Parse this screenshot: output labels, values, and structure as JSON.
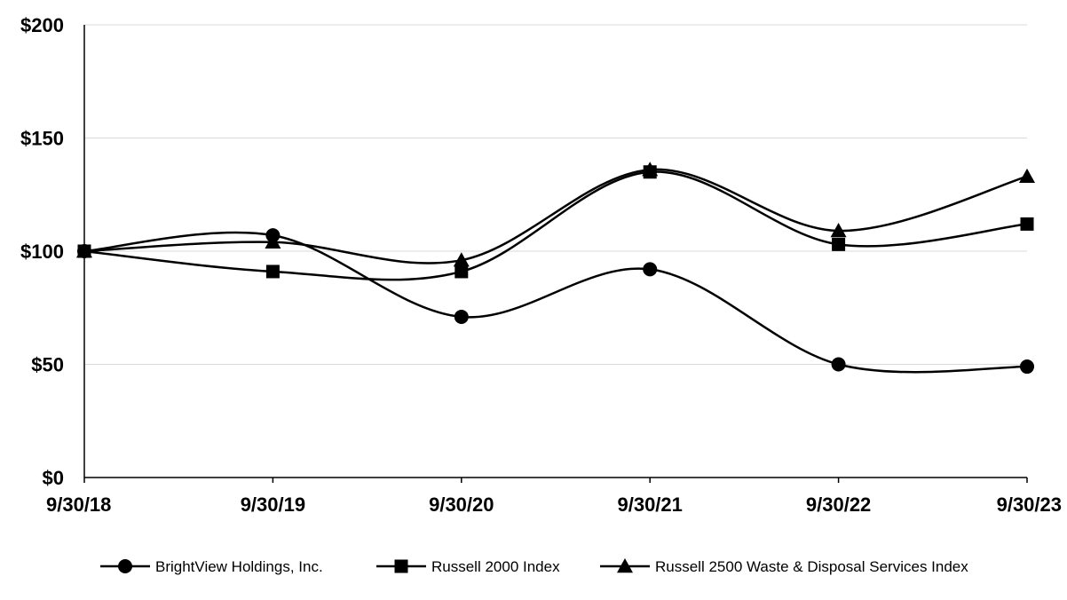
{
  "chart_data": {
    "type": "line",
    "categories": [
      "9/30/18",
      "9/30/19",
      "9/30/20",
      "9/30/21",
      "9/30/22",
      "9/30/23"
    ],
    "series": [
      {
        "name": "BrightView Holdings, Inc.",
        "marker": "circle",
        "values": [
          100,
          107,
          71,
          92,
          50,
          49
        ]
      },
      {
        "name": "Russell 2000 Index",
        "marker": "square",
        "values": [
          100,
          91,
          91,
          135,
          103,
          112
        ]
      },
      {
        "name": "Russell 2500 Waste & Disposal Services Index",
        "marker": "triangle",
        "values": [
          100,
          104,
          96,
          136,
          109,
          133
        ]
      }
    ],
    "yticks": [
      "$0",
      "$50",
      "$100",
      "$150",
      "$200"
    ],
    "ylim": [
      0,
      200
    ],
    "grid": true,
    "legend_position": "bottom-center",
    "line_color": "#000000",
    "grid_color": "#d9d9d9"
  }
}
